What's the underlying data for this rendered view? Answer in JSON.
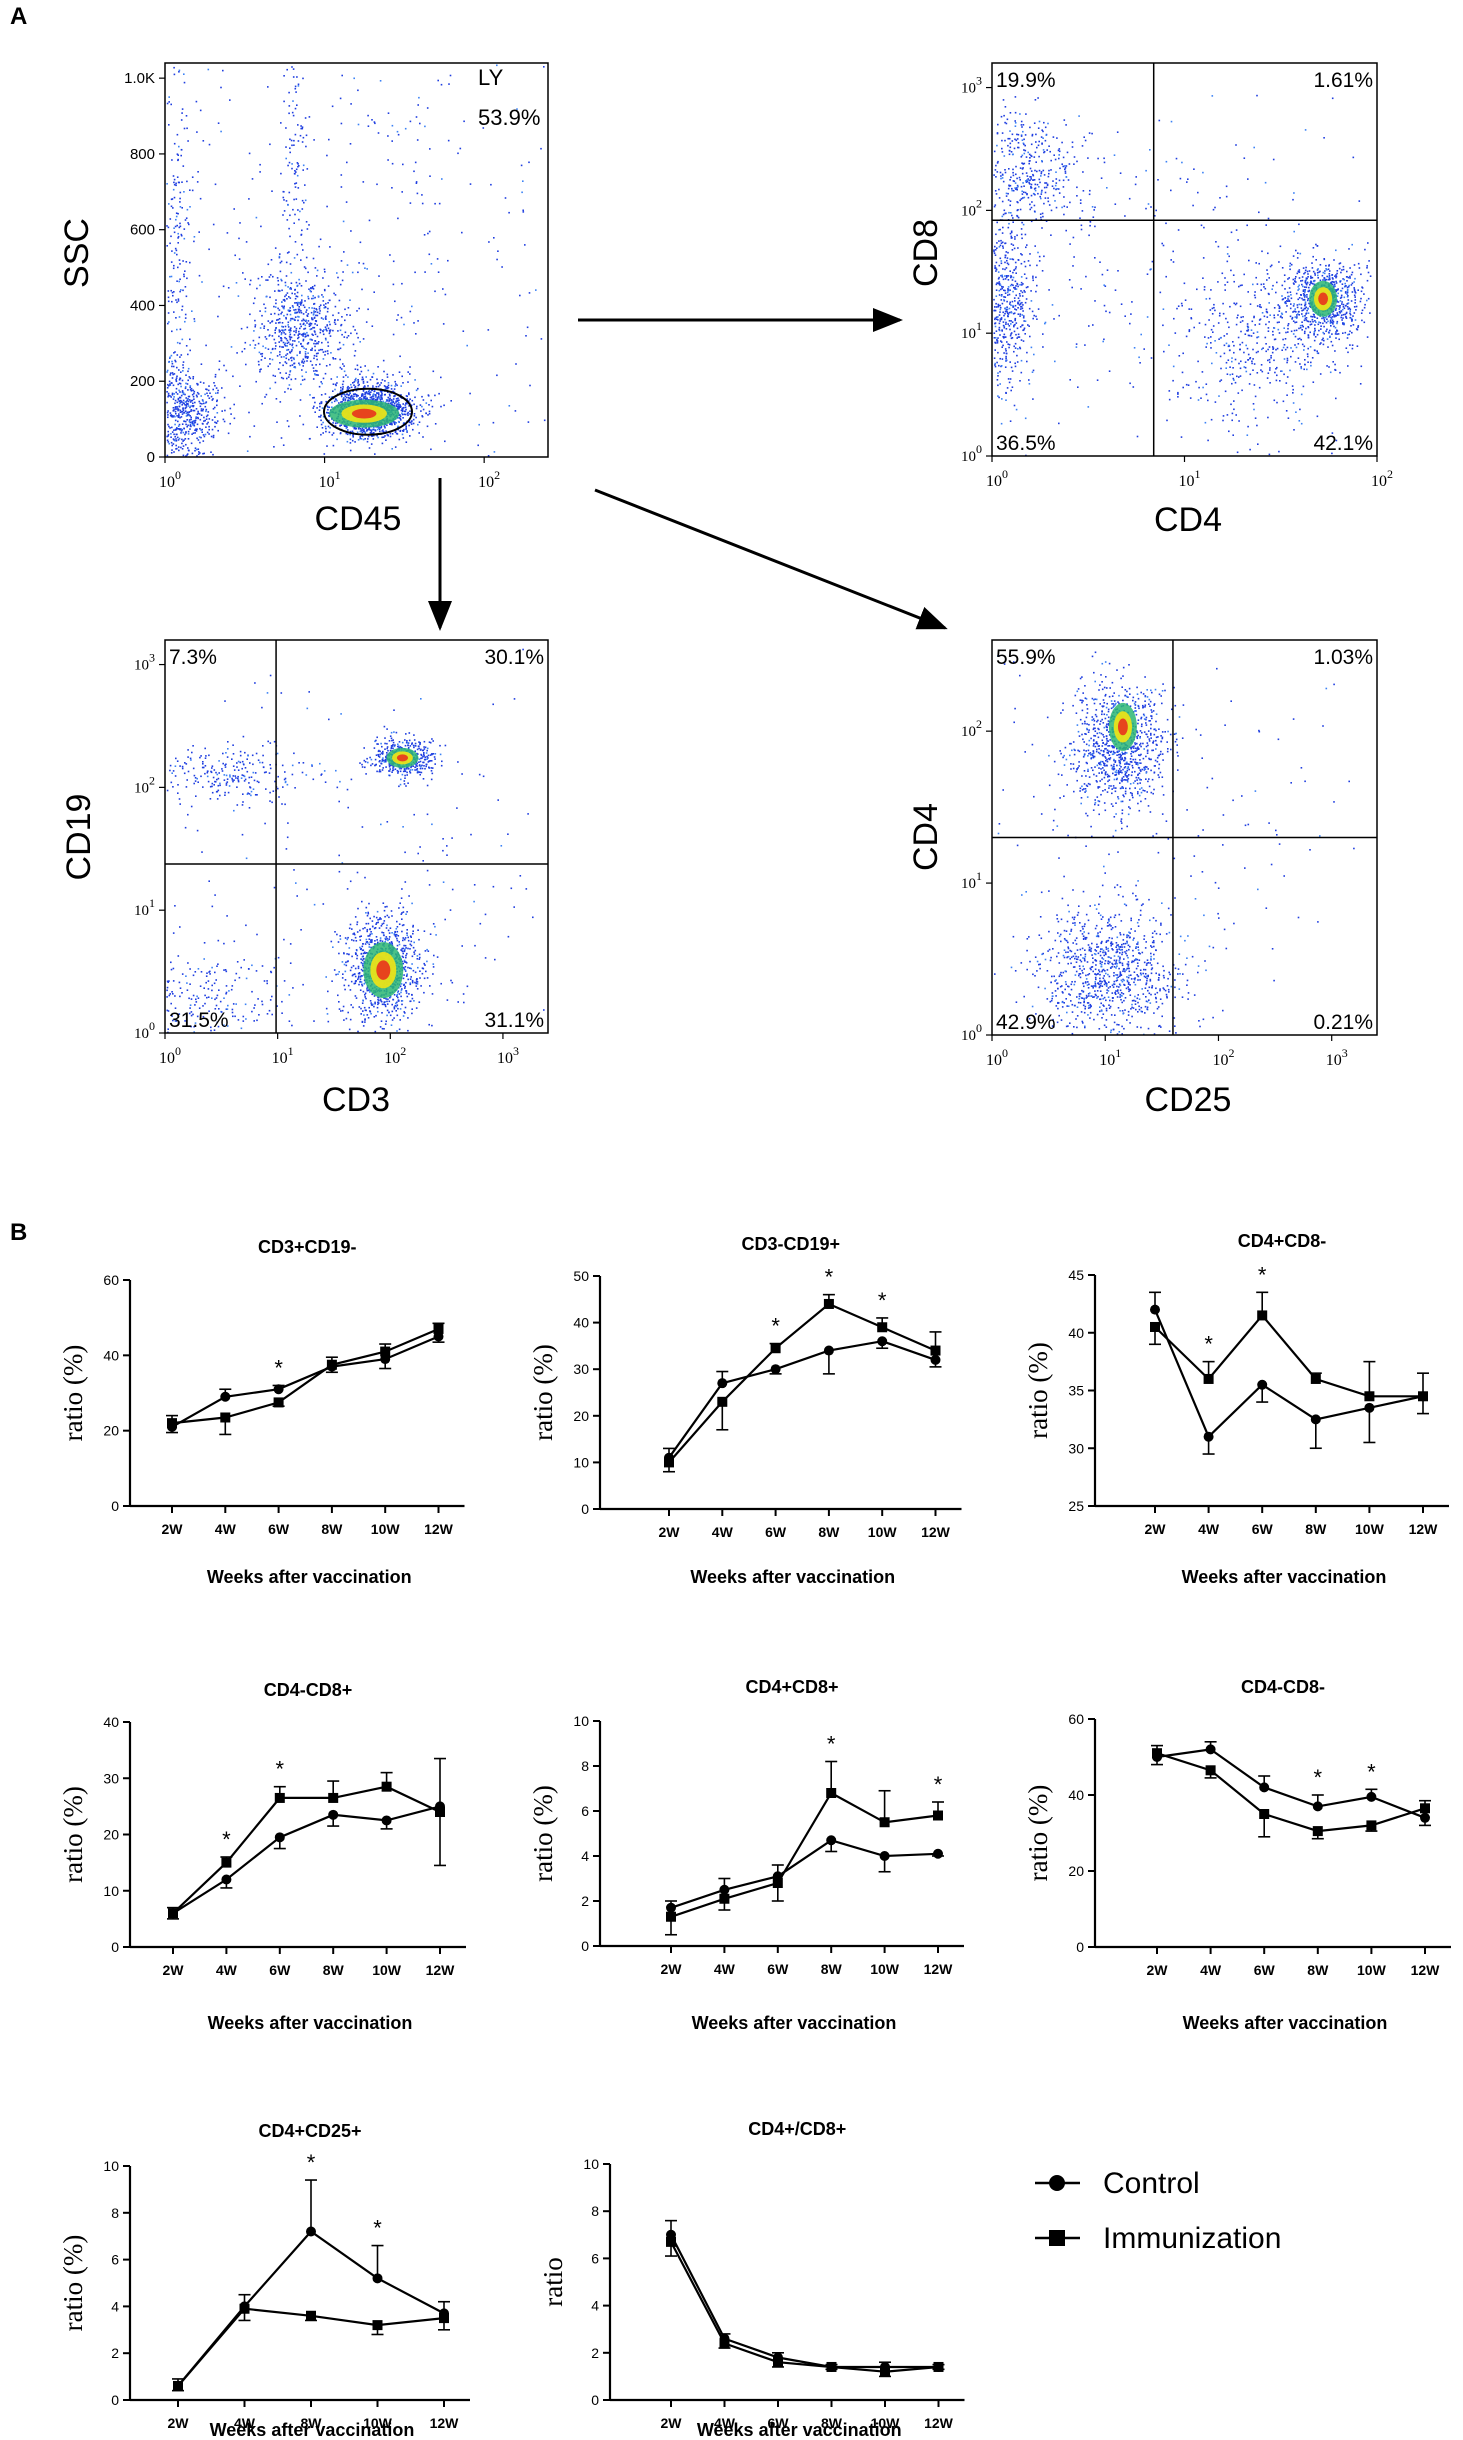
{
  "panel_labels": {
    "a": "A",
    "b": "B"
  },
  "flow_panels": [
    {
      "id": "ssc-cd45",
      "xlabel": "CD45",
      "ylabel": "SSC",
      "x_ticks": [
        {
          "v": 0,
          "t": "10",
          "e": "0"
        },
        {
          "v": 1,
          "t": "10",
          "e": "1"
        },
        {
          "v": 2,
          "t": "10",
          "e": "2"
        }
      ],
      "y_ticks": [
        {
          "v": 0,
          "t": "0"
        },
        {
          "v": 200,
          "t": "200"
        },
        {
          "v": 400,
          "t": "400"
        },
        {
          "v": 600,
          "t": "600"
        },
        {
          "v": 800,
          "t": "800"
        },
        {
          "v": 1000,
          "t": "1.0K"
        }
      ],
      "gate": {
        "name": "LY",
        "percent": "53.9%"
      },
      "quadrants": []
    },
    {
      "id": "cd8-cd4",
      "xlabel": "CD4",
      "ylabel": "CD8",
      "x_ticks": [
        {
          "v": 0,
          "t": "10",
          "e": "0"
        },
        {
          "v": 1,
          "t": "10",
          "e": "1"
        },
        {
          "v": 2,
          "t": "10",
          "e": "2"
        }
      ],
      "y_ticks": [
        {
          "v": 0,
          "t": "10",
          "e": "0"
        },
        {
          "v": 1,
          "t": "10",
          "e": "1"
        },
        {
          "v": 2,
          "t": "10",
          "e": "2"
        },
        {
          "v": 3,
          "t": "10",
          "e": "3"
        }
      ],
      "quadrants": {
        "ul": "19.9%",
        "ur": "1.61%",
        "ll": "36.5%",
        "lr": "42.1%"
      }
    },
    {
      "id": "cd19-cd3",
      "xlabel": "CD3",
      "ylabel": "CD19",
      "x_ticks": [
        {
          "v": 0,
          "t": "10",
          "e": "0"
        },
        {
          "v": 1,
          "t": "10",
          "e": "1"
        },
        {
          "v": 2,
          "t": "10",
          "e": "2"
        },
        {
          "v": 3,
          "t": "10",
          "e": "3"
        }
      ],
      "y_ticks": [
        {
          "v": 0,
          "t": "10",
          "e": "0"
        },
        {
          "v": 1,
          "t": "10",
          "e": "1"
        },
        {
          "v": 2,
          "t": "10",
          "e": "2"
        },
        {
          "v": 3,
          "t": "10",
          "e": "3"
        }
      ],
      "quadrants": {
        "ul": "7.3%",
        "ur": "30.1%",
        "ll": "31.5%",
        "lr": "31.1%"
      }
    },
    {
      "id": "cd4-cd25",
      "xlabel": "CD25",
      "ylabel": "CD4",
      "x_ticks": [
        {
          "v": 0,
          "t": "10",
          "e": "0"
        },
        {
          "v": 1,
          "t": "10",
          "e": "1"
        },
        {
          "v": 2,
          "t": "10",
          "e": "2"
        },
        {
          "v": 3,
          "t": "10",
          "e": "3"
        }
      ],
      "y_ticks": [
        {
          "v": 0,
          "t": "10",
          "e": "0"
        },
        {
          "v": 1,
          "t": "10",
          "e": "1"
        },
        {
          "v": 2,
          "t": "10",
          "e": "2"
        }
      ],
      "quadrants": {
        "ul": "55.9%",
        "ur": "1.03%",
        "ll": "42.9%",
        "lr": "0.21%"
      }
    }
  ],
  "chart_data": [
    {
      "type": "line",
      "title": "CD3+CD19-",
      "xlabel": "Weeks after vaccination",
      "ylabel": "ratio (%)",
      "categories": [
        "2W",
        "4W",
        "6W",
        "8W",
        "10W",
        "12W"
      ],
      "ylim": [
        0,
        60
      ],
      "yticks": [
        0,
        20,
        40,
        60
      ],
      "series": [
        {
          "name": "Control",
          "values": [
            21,
            29,
            31,
            37,
            39,
            45
          ],
          "err": [
            1.5,
            2,
            1,
            1.5,
            2.5,
            1.5
          ]
        },
        {
          "name": "Immunization",
          "values": [
            22,
            23.5,
            27.5,
            37.5,
            41,
            47
          ],
          "err": [
            2,
            4.5,
            1,
            2,
            2,
            1.5
          ]
        }
      ],
      "significance": [
        2
      ]
    },
    {
      "type": "line",
      "title": "CD3-CD19+",
      "xlabel": "Weeks after vaccination",
      "ylabel": "ratio (%)",
      "categories": [
        "2W",
        "4W",
        "6W",
        "8W",
        "10W",
        "12W"
      ],
      "ylim": [
        0,
        50
      ],
      "yticks": [
        0,
        10,
        20,
        30,
        40,
        50
      ],
      "series": [
        {
          "name": "Control",
          "values": [
            11,
            27,
            30,
            34,
            36,
            32
          ],
          "err": [
            2,
            2.5,
            1,
            5,
            1.5,
            1.5
          ]
        },
        {
          "name": "Immunization",
          "values": [
            10,
            23,
            34.5,
            44,
            39,
            34
          ],
          "err": [
            2,
            6,
            1,
            2,
            2,
            4
          ]
        }
      ],
      "significance": [
        2,
        3,
        4
      ]
    },
    {
      "type": "line",
      "title": "CD4+CD8-",
      "xlabel": "Weeks after vaccination",
      "ylabel": "ratio (%)",
      "categories": [
        "2W",
        "4W",
        "6W",
        "8W",
        "10W",
        "12W"
      ],
      "ylim": [
        25,
        45
      ],
      "yticks": [
        25,
        30,
        35,
        40,
        45
      ],
      "series": [
        {
          "name": "Control",
          "values": [
            42,
            31,
            35.5,
            32.5,
            33.5,
            34.5
          ],
          "err": [
            1.5,
            1.5,
            1.5,
            2.5,
            3,
            2
          ]
        },
        {
          "name": "Immunization",
          "values": [
            40.5,
            36,
            41.5,
            36,
            34.5,
            34.5
          ],
          "err": [
            1.5,
            1.5,
            2,
            0.5,
            3,
            1.5
          ]
        }
      ],
      "significance": [
        1,
        2
      ]
    },
    {
      "type": "line",
      "title": "CD4-CD8+",
      "xlabel": "Weeks after vaccination",
      "ylabel": "ratio (%)",
      "categories": [
        "2W",
        "4W",
        "6W",
        "8W",
        "10W",
        "12W"
      ],
      "ylim": [
        0,
        40
      ],
      "yticks": [
        0,
        10,
        20,
        30,
        40
      ],
      "series": [
        {
          "name": "Control",
          "values": [
            6,
            12,
            19.5,
            23.5,
            22.5,
            25
          ],
          "err": [
            1,
            1.5,
            2,
            2,
            1.5,
            8.5
          ]
        },
        {
          "name": "Immunization",
          "values": [
            6,
            15,
            26.5,
            26.5,
            28.5,
            24
          ],
          "err": [
            1,
            1,
            2,
            3,
            2.5,
            9.5
          ]
        }
      ],
      "significance": [
        1,
        2
      ]
    },
    {
      "type": "line",
      "title": "CD4+CD8+",
      "xlabel": "Weeks after vaccination",
      "ylabel": "ratio (%)",
      "categories": [
        "2W",
        "4W",
        "6W",
        "8W",
        "10W",
        "12W"
      ],
      "ylim": [
        0,
        10
      ],
      "yticks": [
        0,
        2,
        4,
        6,
        8,
        10
      ],
      "series": [
        {
          "name": "Control",
          "values": [
            1.7,
            2.5,
            3.1,
            4.7,
            4,
            4.1
          ],
          "err": [
            0.3,
            0.5,
            0.5,
            0.5,
            0.7,
            0.1
          ]
        },
        {
          "name": "Immunization",
          "values": [
            1.3,
            2.1,
            2.8,
            6.8,
            5.5,
            5.8
          ],
          "err": [
            0.8,
            0.5,
            0.8,
            1.4,
            1.4,
            0.6
          ]
        }
      ],
      "significance": [
        3,
        5
      ]
    },
    {
      "type": "line",
      "title": "CD4-CD8-",
      "xlabel": "Weeks after vaccination",
      "ylabel": "ratio (%)",
      "categories": [
        "2W",
        "4W",
        "6W",
        "8W",
        "10W",
        "12W"
      ],
      "ylim": [
        0,
        60
      ],
      "yticks": [
        0,
        20,
        40,
        60
      ],
      "series": [
        {
          "name": "Control",
          "values": [
            50,
            52,
            42,
            37,
            39.5,
            34
          ],
          "err": [
            2,
            2,
            3,
            3,
            2,
            2
          ]
        },
        {
          "name": "Immunization",
          "values": [
            51,
            46.5,
            35,
            30.5,
            32,
            36.5
          ],
          "err": [
            2,
            2,
            6,
            2,
            1.5,
            2
          ]
        }
      ],
      "significance": [
        3,
        4
      ]
    },
    {
      "type": "line",
      "title": "CD4+CD25+",
      "xlabel": "Weeks after vaccination",
      "ylabel": "ratio (%)",
      "categories": [
        "2W",
        "4W",
        "8W",
        "10W",
        "12W"
      ],
      "ylim": [
        0,
        10
      ],
      "yticks": [
        0,
        2,
        4,
        6,
        8,
        10
      ],
      "series": [
        {
          "name": "Control",
          "values": [
            0.6,
            4,
            7.2,
            5.2,
            3.7
          ],
          "err": [
            0.3,
            0.5,
            2.2,
            1.4,
            0.5
          ]
        },
        {
          "name": "Immunization",
          "values": [
            0.6,
            3.9,
            3.6,
            3.2,
            3.5
          ],
          "err": [
            0.2,
            0.5,
            0.2,
            0.4,
            0.5
          ]
        }
      ],
      "significance": [
        2,
        3
      ]
    },
    {
      "type": "line",
      "title": "CD4+/CD8+",
      "xlabel": "Weeks after vaccination",
      "ylabel": "ratio",
      "categories": [
        "2W",
        "4W",
        "6W",
        "8W",
        "10W",
        "12W"
      ],
      "ylim": [
        0,
        10
      ],
      "yticks": [
        0,
        2,
        4,
        6,
        8,
        10
      ],
      "series": [
        {
          "name": "Control",
          "values": [
            7,
            2.6,
            1.8,
            1.4,
            1.4,
            1.4
          ],
          "err": [
            0.6,
            0.2,
            0.2,
            0.1,
            0.2,
            0.1
          ]
        },
        {
          "name": "Immunization",
          "values": [
            6.7,
            2.4,
            1.6,
            1.4,
            1.2,
            1.4
          ],
          "err": [
            0.6,
            0.2,
            0.2,
            0.1,
            0.2,
            0.1
          ]
        }
      ],
      "significance": []
    }
  ],
  "legend": {
    "items": [
      {
        "name": "Control",
        "marker": "circle"
      },
      {
        "name": "Immunization",
        "marker": "square"
      }
    ]
  },
  "significance_symbol": "*"
}
